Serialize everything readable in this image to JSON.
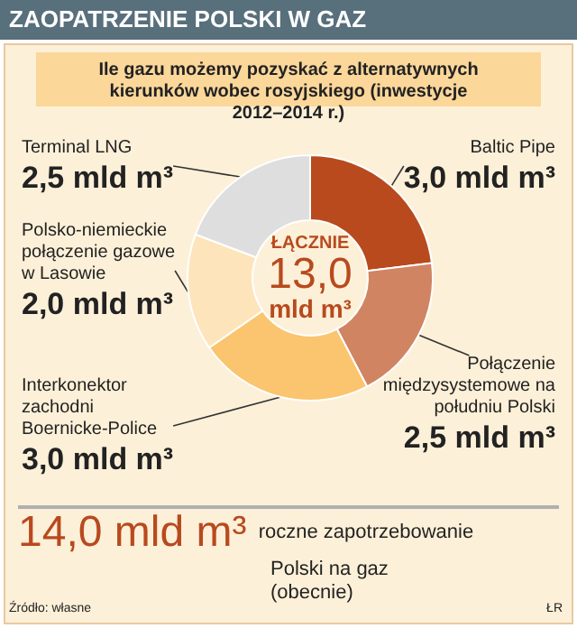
{
  "chart_data": {
    "type": "donut",
    "title": "ZAOPATRZENIE POLSKI W GAZ",
    "subtitle": "Ile gazu możemy pozyskać z alternatywnych kierunków wobec rosyjskiego (inwestycje 2012–2014 r.)",
    "categories": [
      "Baltic Pipe",
      "Połączenie międzysystemowe na południu Polski",
      "Interkonektor zachodni Boernicke-Police",
      "Polsko-niemieckie połączenie gazowe w Lasowie",
      "Terminal LNG"
    ],
    "values": [
      3.0,
      2.5,
      3.0,
      2.0,
      2.5
    ],
    "value_labels": [
      "3,0 mld m³",
      "2,5 mld m³",
      "3,0 mld m³",
      "2,0 mld m³",
      "2,5 mld m³"
    ],
    "colors": [
      "#b84a1e",
      "#d08462",
      "#fac56e",
      "#fde4bb",
      "#dedede"
    ],
    "annotations": [
      "ŁĄCZNIE 13,0 mld m³",
      "14,0 mld m³ roczne zapotrzebowanie Polski na gaz (obecnie)",
      "Źródło: własne",
      "ŁR"
    ],
    "legend": false
  }
}
